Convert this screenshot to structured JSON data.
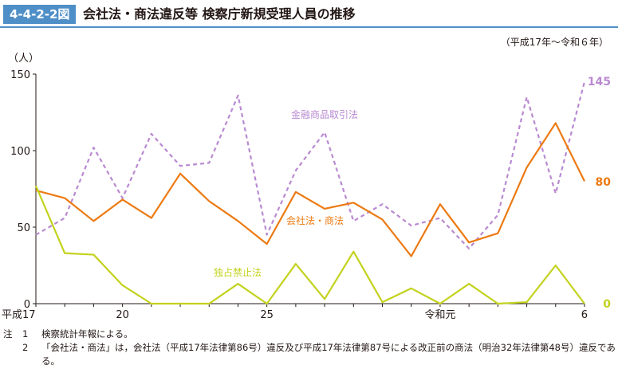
{
  "figure": {
    "number": "4-4-2-2図",
    "title": "会社法・商法違反等 検察庁新規受理人員の推移",
    "period": "（平成17年～令和６年）"
  },
  "colors": {
    "header": "#4f8fc8",
    "kinyu": "#b98ad1",
    "kaisha": "#ec7a12",
    "dokusen": "#c3d21d"
  },
  "chart_data": {
    "type": "line",
    "ylabel": "（人）",
    "ylim": [
      0,
      150
    ],
    "yticks": [
      0,
      50,
      100,
      150
    ],
    "x": [
      2005,
      2006,
      2007,
      2008,
      2009,
      2010,
      2011,
      2012,
      2013,
      2014,
      2015,
      2016,
      2017,
      2018,
      2019,
      2020,
      2021,
      2022,
      2023,
      2024
    ],
    "xticks": [
      {
        "x": 2005,
        "label": "平成17"
      },
      {
        "x": 2008,
        "label": "20"
      },
      {
        "x": 2013,
        "label": "25"
      },
      {
        "x": 2019,
        "label": "令和元"
      },
      {
        "x": 2024,
        "label": "6"
      }
    ],
    "series": [
      {
        "key": "kinyu",
        "name": "金融商品取引法",
        "style": "dashed",
        "values": [
          45,
          56,
          102,
          69,
          111,
          90,
          92,
          136,
          45,
          87,
          112,
          54,
          65,
          51,
          56,
          36,
          58,
          135,
          72,
          145
        ],
        "end_label": "145"
      },
      {
        "key": "kaisha",
        "name": "会社法・商法",
        "style": "solid",
        "values": [
          74,
          69,
          54,
          68,
          56,
          85,
          67,
          54,
          39,
          73,
          62,
          66,
          55,
          31,
          65,
          40,
          46,
          89,
          118,
          80
        ],
        "end_label": "80"
      },
      {
        "key": "dokusen",
        "name": "独占禁止法",
        "style": "solid",
        "values": [
          77,
          33,
          32,
          12,
          0,
          0,
          0,
          13,
          0,
          26,
          3,
          34,
          1,
          10,
          0,
          13,
          0,
          1,
          25,
          0
        ],
        "end_label": "0"
      }
    ]
  },
  "notes": [
    {
      "mark": "注",
      "num": "1",
      "text": "検察統計年報による。"
    },
    {
      "mark": "",
      "num": "2",
      "text": "「会社法・商法」は，会社法（平成17年法律第86号）違反及び平成17年法律第87号による改正前の商法（明治32年法律第48号）違反である。"
    }
  ]
}
